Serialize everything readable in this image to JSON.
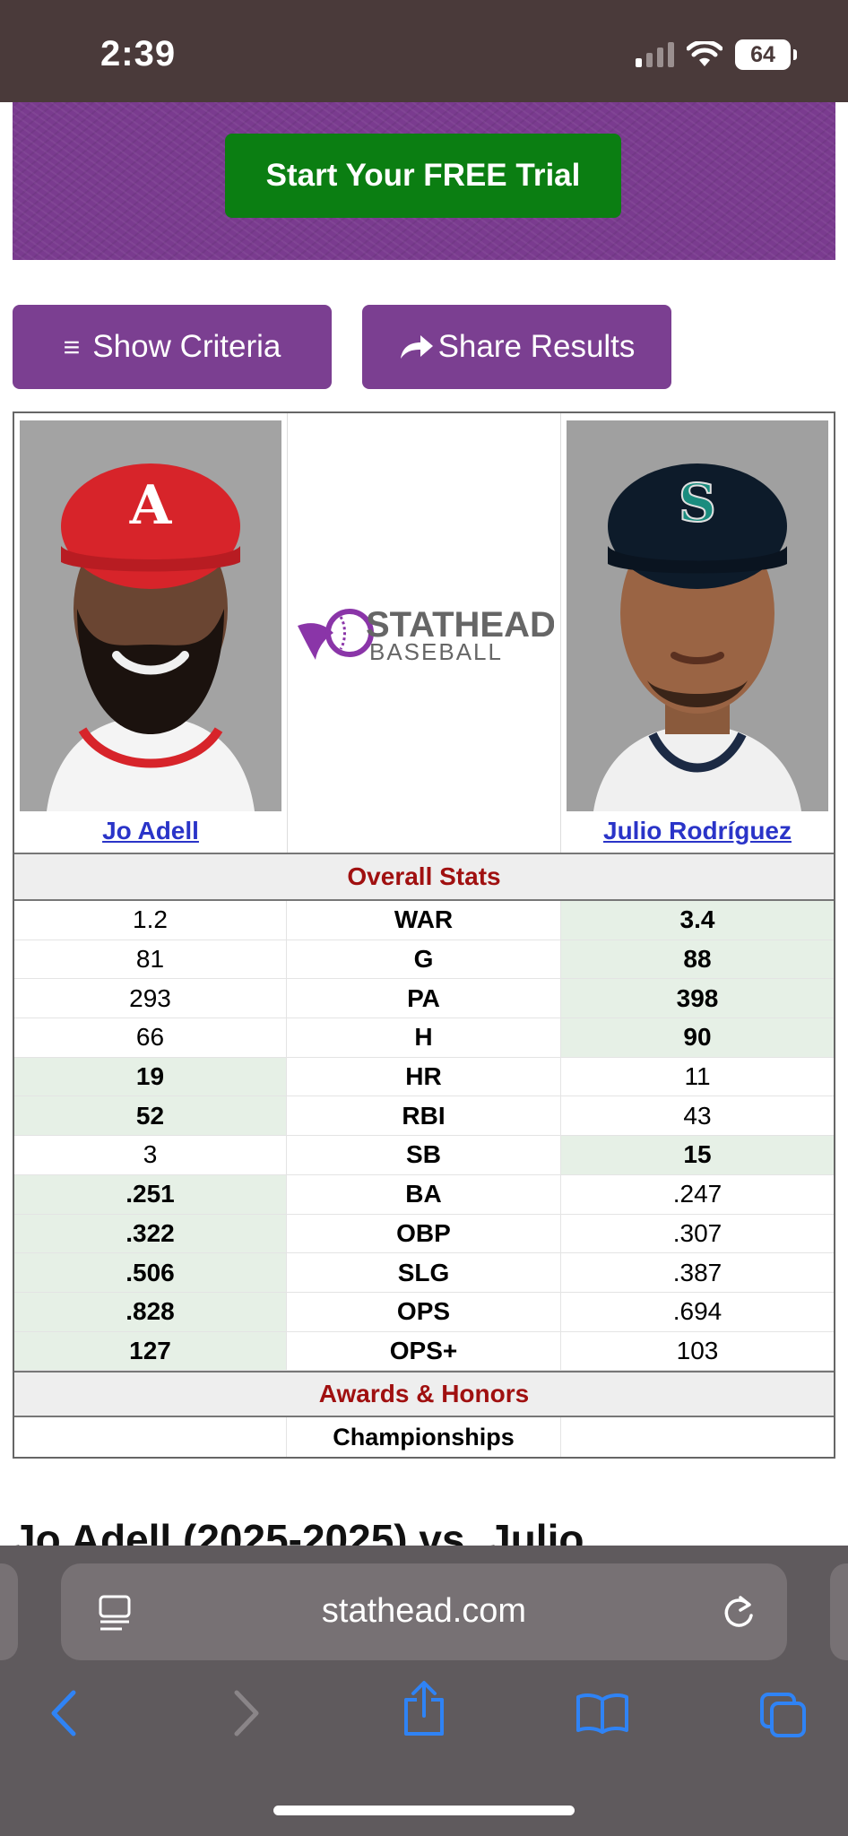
{
  "status": {
    "time": "2:39",
    "battery": "64"
  },
  "promo": {
    "cta": "Start Your FREE Trial"
  },
  "actions": {
    "criteria": "Show Criteria",
    "share": "Share Results"
  },
  "logo": {
    "line1": "STATHEAD",
    "line2": "BASEBALL"
  },
  "players": [
    {
      "name": "Jo Adell",
      "cap_color": "#d7242a",
      "cap_letter": "A"
    },
    {
      "name": "Julio Rodríguez",
      "cap_color": "#0d1b2a",
      "cap_letter": "S"
    }
  ],
  "sections": {
    "overall": "Overall Stats",
    "awards": "Awards & Honors"
  },
  "stats": [
    {
      "label": "WAR",
      "p1": "1.2",
      "p2": "3.4",
      "winner": 2
    },
    {
      "label": "G",
      "p1": "81",
      "p2": "88",
      "winner": 2
    },
    {
      "label": "PA",
      "p1": "293",
      "p2": "398",
      "winner": 2
    },
    {
      "label": "H",
      "p1": "66",
      "p2": "90",
      "winner": 2
    },
    {
      "label": "HR",
      "p1": "19",
      "p2": "11",
      "winner": 1
    },
    {
      "label": "RBI",
      "p1": "52",
      "p2": "43",
      "winner": 1
    },
    {
      "label": "SB",
      "p1": "3",
      "p2": "15",
      "winner": 2
    },
    {
      "label": "BA",
      "p1": ".251",
      "p2": ".247",
      "winner": 1
    },
    {
      "label": "OBP",
      "p1": ".322",
      "p2": ".307",
      "winner": 1
    },
    {
      "label": "SLG",
      "p1": ".506",
      "p2": ".387",
      "winner": 1
    },
    {
      "label": "OPS",
      "p1": ".828",
      "p2": ".694",
      "winner": 1
    },
    {
      "label": "OPS+",
      "p1": "127",
      "p2": "103",
      "winner": 1
    }
  ],
  "awards": {
    "championships": "Championships"
  },
  "next_heading": "Jo Adell (2025-2025) vs. Julio",
  "browser": {
    "url": "stathead.com"
  }
}
